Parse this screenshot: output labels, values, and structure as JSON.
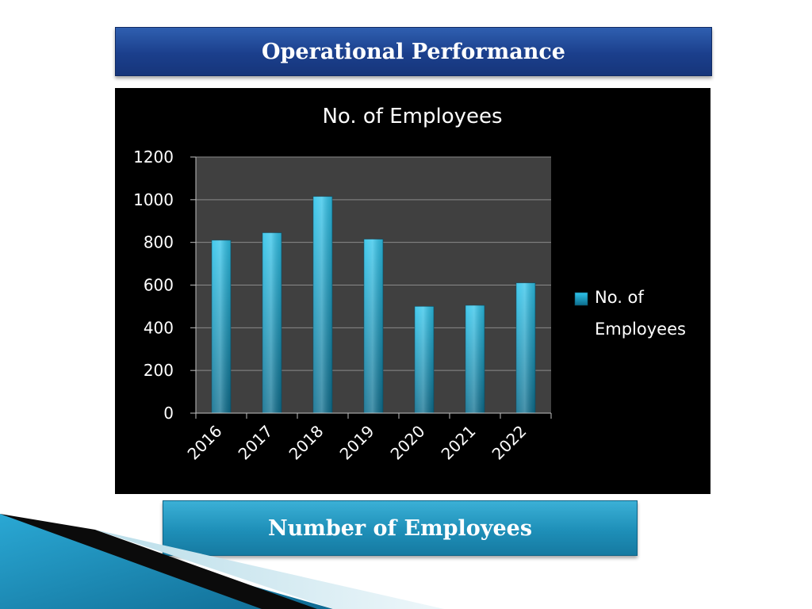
{
  "slide": {
    "title": "Operational Performance",
    "caption": "Number of Employees"
  },
  "colors": {
    "title_bar": "#1b3f8c",
    "caption_bar": "#1e8fb8",
    "bar_top": "#2ec3ea",
    "bar_bottom": "#0d6e8e",
    "plot_background": "#404040",
    "chart_background": "#000000"
  },
  "chart_data": {
    "type": "bar",
    "title": "No. of Employees",
    "categories": [
      "2016",
      "2017",
      "2018",
      "2019",
      "2020",
      "2021",
      "2022"
    ],
    "series": [
      {
        "name": "No. of Employees",
        "values": [
          810,
          845,
          1015,
          815,
          500,
          505,
          610
        ]
      }
    ],
    "ylim": [
      0,
      1200
    ],
    "yticks": [
      0,
      200,
      400,
      600,
      800,
      1000,
      1200
    ],
    "grid": true,
    "legend": "right"
  }
}
